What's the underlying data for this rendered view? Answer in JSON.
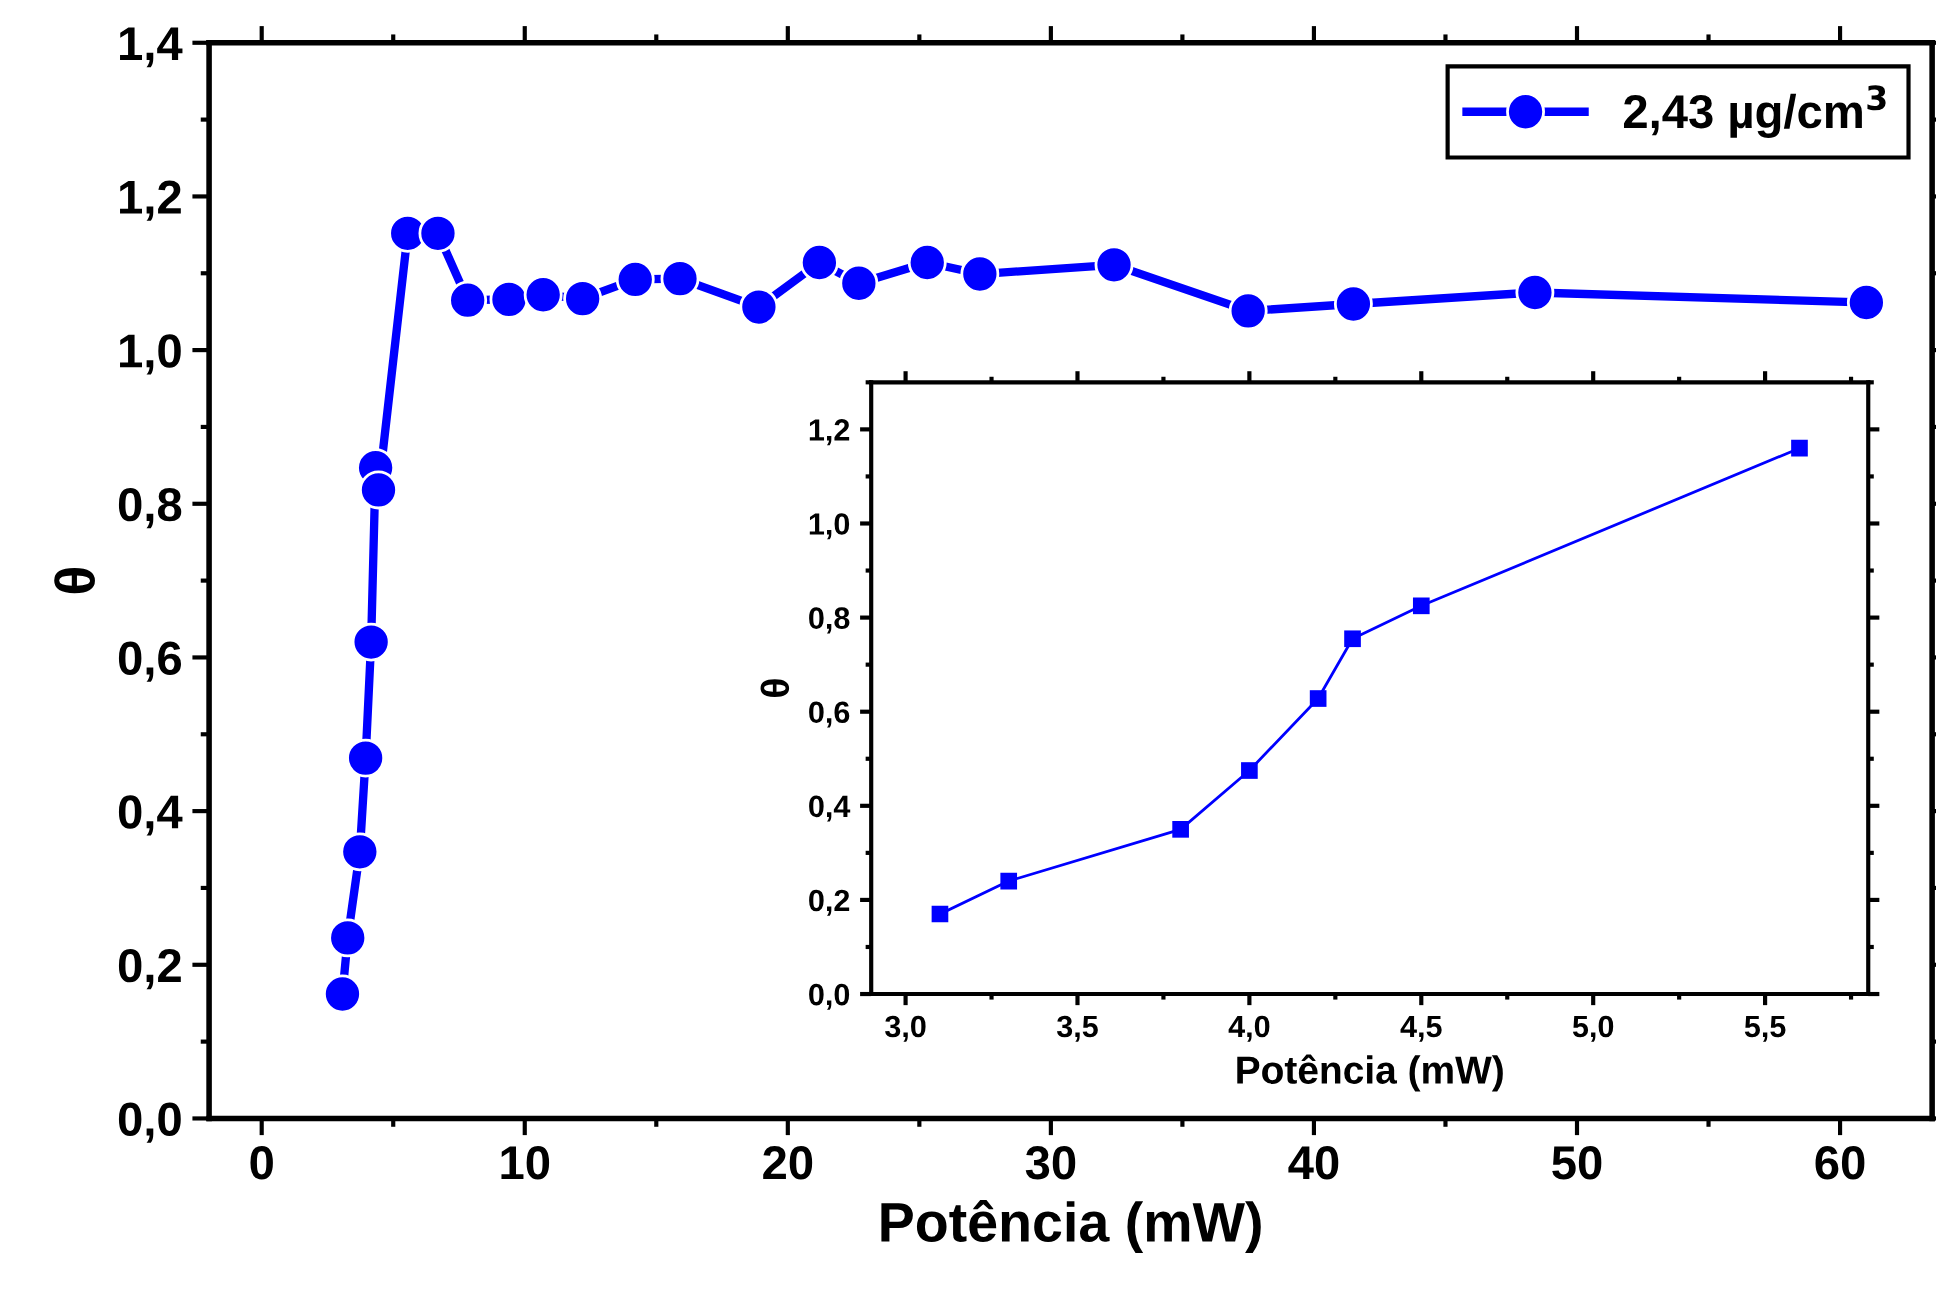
{
  "chart_data": [
    {
      "type": "line",
      "xlabel": "Potência (mW)",
      "ylabel": "θ",
      "xlim": [
        -2,
        63.5
      ],
      "ylim": [
        0,
        1.4
      ],
      "xticks": [
        0,
        10,
        20,
        30,
        40,
        50,
        60
      ],
      "yticks": [
        {
          "value": 0,
          "label": "0,0"
        },
        {
          "value": 0.2,
          "label": "0,2"
        },
        {
          "value": 0.4,
          "label": "0,4"
        },
        {
          "value": 0.6,
          "label": "0,6"
        },
        {
          "value": 0.8,
          "label": "0,8"
        },
        {
          "value": 1.0,
          "label": "1,0"
        },
        {
          "value": 1.2,
          "label": "1,2"
        },
        {
          "value": 1.4,
          "label": "1,4"
        }
      ],
      "marker": "circle",
      "line_style": "solid",
      "grid": false,
      "legend": "top right",
      "series": [
        {
          "name": "2,43 µg/cm$^{3}$",
          "color": "#0000ff",
          "x": [
            3.07,
            3.27,
            3.73,
            3.95,
            4.16,
            4.33,
            4.44,
            5.55,
            6.7,
            7.83,
            9.4,
            10.7,
            12.2,
            14.2,
            15.9,
            18.9,
            21.2,
            22.7,
            25.3,
            27.3,
            32.4,
            37.5,
            41.5,
            48.4,
            61.0
          ],
          "values": [
            0.162,
            0.235,
            0.347,
            0.469,
            0.62,
            0.847,
            0.818,
            1.152,
            1.152,
            1.065,
            1.066,
            1.072,
            1.067,
            1.092,
            1.093,
            1.056,
            1.114,
            1.087,
            1.114,
            1.099,
            1.111,
            1.051,
            1.06,
            1.075,
            1.062
          ]
        }
      ]
    },
    {
      "type": "line",
      "xlabel": "Potência (mW)",
      "ylabel": "θ",
      "xlim": [
        2.9,
        5.8
      ],
      "ylim": [
        0,
        1.3
      ],
      "xticks": [
        {
          "value": 3.0,
          "label": "3,0"
        },
        {
          "value": 3.5,
          "label": "3,5"
        },
        {
          "value": 4.0,
          "label": "4,0"
        },
        {
          "value": 4.5,
          "label": "4,5"
        },
        {
          "value": 5.0,
          "label": "5,0"
        },
        {
          "value": 5.5,
          "label": "5,5"
        }
      ],
      "yticks": [
        {
          "value": 0,
          "label": "0,0"
        },
        {
          "value": 0.2,
          "label": "0,2"
        },
        {
          "value": 0.4,
          "label": "0,4"
        },
        {
          "value": 0.6,
          "label": "0,6"
        },
        {
          "value": 0.8,
          "label": "0,8"
        },
        {
          "value": 1.0,
          "label": "1,0"
        },
        {
          "value": 1.2,
          "label": "1,2"
        }
      ],
      "marker": "square",
      "line_style": "solid",
      "grid": false,
      "legend": false,
      "series": [
        {
          "color": "#0000ff",
          "x": [
            3.1,
            3.3,
            3.8,
            4.0,
            4.2,
            4.3,
            4.5,
            5.6
          ],
          "values": [
            0.17,
            0.24,
            0.35,
            0.475,
            0.628,
            0.755,
            0.825,
            1.16
          ]
        }
      ]
    }
  ]
}
